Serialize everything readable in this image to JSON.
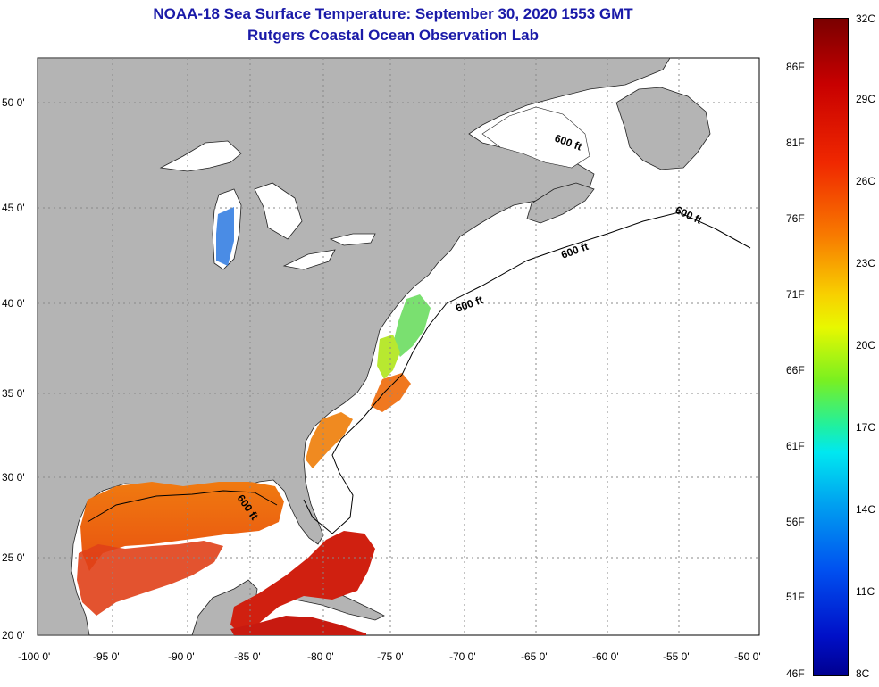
{
  "title": {
    "line1": "NOAA-18 Sea Surface Temperature:  September 30, 2020 1553 GMT",
    "line2": "Rutgers Coastal Ocean Observation Lab"
  },
  "map": {
    "lon_ticks": [
      "-100 0'",
      "-95 0'",
      "-90 0'",
      "-85 0'",
      "-80 0'",
      "-75 0'",
      "-70 0'",
      "-65 0'",
      "-60 0'",
      "-55 0'",
      "-50 0'"
    ],
    "lat_ticks": [
      "50 0'",
      "45 0'",
      "40 0'",
      "35 0'",
      "30 0'",
      "25 0'",
      "20 0'"
    ],
    "contour_labels": [
      "600 ft",
      "600 ft",
      "600 ft",
      "600 ft",
      "600 ft"
    ]
  },
  "colorbar": {
    "celsius": [
      "32C",
      "29C",
      "26C",
      "23C",
      "20C",
      "17C",
      "14C",
      "11C",
      "8C"
    ],
    "fahrenheit": [
      "86F",
      "81F",
      "76F",
      "71F",
      "66F",
      "61F",
      "56F",
      "51F",
      "46F"
    ]
  }
}
